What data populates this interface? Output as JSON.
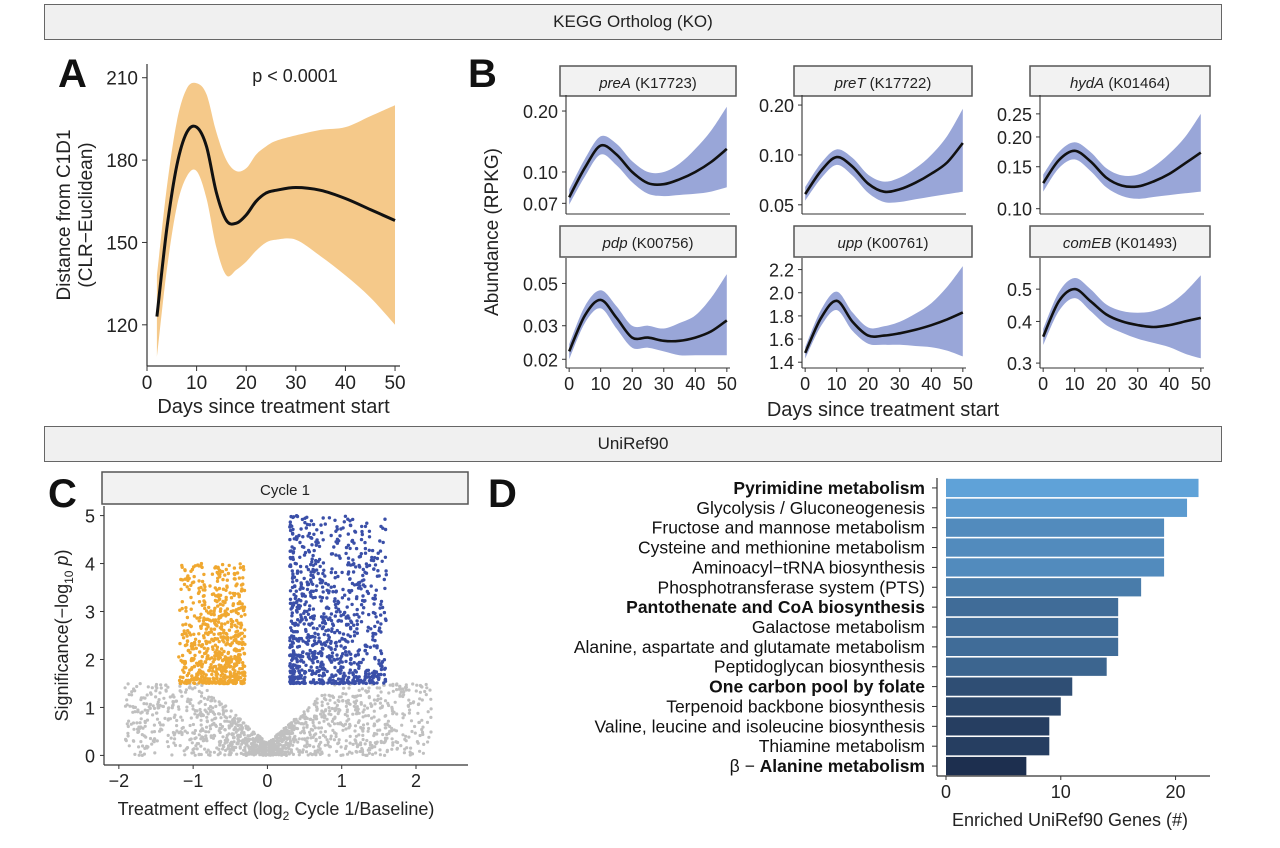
{
  "header_kegg": "KEGG Ortholog (KO)",
  "header_uniref": "UniRef90",
  "panel_labels": [
    "A",
    "B",
    "C",
    "D"
  ],
  "colors": {
    "orange_band": "#f5c98a",
    "blue_band": "#99a6d8",
    "orange_points": "#f0a830",
    "blue_points": "#3a4fa8",
    "grey_points": "#c0c0c0",
    "bar_light": "#5fa2d8",
    "bar_dark": "#1d2f4f"
  },
  "chart_data": [
    {
      "id": "A",
      "type": "line",
      "title": "",
      "annotation": "p < 0.0001",
      "xlabel": "Days since treatment start",
      "ylabel_lines": [
        "Distance from C1D1",
        "(CLR−Euclidean)"
      ],
      "xlim": [
        0,
        51
      ],
      "ylim": [
        105,
        215
      ],
      "xticks": [
        0,
        10,
        20,
        30,
        40,
        50
      ],
      "yticks": [
        120,
        150,
        180,
        210
      ],
      "x": [
        2,
        4,
        6,
        8,
        10,
        12,
        14,
        16,
        18,
        20,
        22,
        24,
        26,
        30,
        35,
        40,
        45,
        50
      ],
      "y": [
        123,
        155,
        178,
        190,
        192,
        185,
        168,
        158,
        157,
        160,
        165,
        168,
        169,
        170,
        169,
        166,
        162,
        158
      ],
      "lower": [
        108,
        140,
        163,
        174,
        176,
        166,
        148,
        138,
        140,
        143,
        147,
        150,
        151,
        151,
        145,
        138,
        130,
        120
      ],
      "upper": [
        138,
        170,
        194,
        206,
        208,
        204,
        190,
        180,
        176,
        177,
        182,
        185,
        187,
        189,
        191,
        192,
        196,
        200
      ]
    },
    {
      "id": "B",
      "type": "line",
      "facets": [
        {
          "gene": "preA",
          "ko": "(K17723)",
          "scale": "log",
          "ylim": [
            0.062,
            0.24
          ],
          "yticks": [
            0.07,
            0.1,
            0.2
          ],
          "ytick_labels": [
            "0.07",
            "0.10",
            "0.20"
          ],
          "x": [
            0,
            5,
            10,
            15,
            20,
            25,
            30,
            35,
            40,
            45,
            50
          ],
          "y": [
            0.075,
            0.105,
            0.135,
            0.122,
            0.1,
            0.088,
            0.087,
            0.092,
            0.1,
            0.112,
            0.13
          ],
          "lower": [
            0.069,
            0.095,
            0.122,
            0.108,
            0.089,
            0.078,
            0.076,
            0.077,
            0.078,
            0.08,
            0.084
          ],
          "upper": [
            0.082,
            0.116,
            0.15,
            0.138,
            0.113,
            0.1,
            0.1,
            0.11,
            0.13,
            0.16,
            0.21
          ]
        },
        {
          "gene": "preT",
          "ko": "(K17722)",
          "scale": "log",
          "ylim": [
            0.044,
            0.23
          ],
          "yticks": [
            0.05,
            0.1,
            0.2
          ],
          "ytick_labels": [
            "0.05",
            "0.10",
            "0.20"
          ],
          "x": [
            0,
            5,
            10,
            15,
            20,
            25,
            30,
            35,
            40,
            45,
            50
          ],
          "y": [
            0.058,
            0.08,
            0.097,
            0.085,
            0.067,
            0.06,
            0.062,
            0.068,
            0.077,
            0.09,
            0.118
          ],
          "lower": [
            0.053,
            0.072,
            0.087,
            0.075,
            0.059,
            0.052,
            0.052,
            0.054,
            0.056,
            0.058,
            0.06
          ],
          "upper": [
            0.064,
            0.089,
            0.108,
            0.096,
            0.076,
            0.069,
            0.073,
            0.083,
            0.1,
            0.13,
            0.19
          ]
        },
        {
          "gene": "hydA",
          "ko": "(K01464)",
          "scale": "log",
          "ylim": [
            0.095,
            0.3
          ],
          "yticks": [
            0.1,
            0.15,
            0.2,
            0.25
          ],
          "ytick_labels": [
            "0.10",
            "0.15",
            "0.20",
            "0.25"
          ],
          "x": [
            0,
            5,
            10,
            15,
            20,
            25,
            30,
            35,
            40,
            45,
            50
          ],
          "y": [
            0.128,
            0.16,
            0.175,
            0.158,
            0.135,
            0.125,
            0.124,
            0.13,
            0.14,
            0.155,
            0.172
          ],
          "lower": [
            0.118,
            0.148,
            0.161,
            0.144,
            0.123,
            0.113,
            0.11,
            0.112,
            0.114,
            0.116,
            0.118
          ],
          "upper": [
            0.139,
            0.173,
            0.19,
            0.173,
            0.148,
            0.138,
            0.139,
            0.15,
            0.17,
            0.2,
            0.25
          ]
        },
        {
          "gene": "pdp",
          "ko": "(K00756)",
          "scale": "log",
          "ylim": [
            0.018,
            0.068
          ],
          "yticks": [
            0.02,
            0.03,
            0.05
          ],
          "ytick_labels": [
            "0.02",
            "0.03",
            "0.05"
          ],
          "x": [
            0,
            5,
            10,
            15,
            20,
            25,
            30,
            35,
            40,
            45,
            50
          ],
          "y": [
            0.022,
            0.034,
            0.041,
            0.033,
            0.026,
            0.026,
            0.025,
            0.025,
            0.026,
            0.028,
            0.032
          ],
          "lower": [
            0.02,
            0.031,
            0.037,
            0.029,
            0.023,
            0.023,
            0.022,
            0.021,
            0.021,
            0.021,
            0.021
          ],
          "upper": [
            0.024,
            0.038,
            0.046,
            0.038,
            0.03,
            0.03,
            0.029,
            0.031,
            0.034,
            0.042,
            0.056
          ]
        },
        {
          "gene": "upp",
          "ko": "(K00761)",
          "scale": "linear",
          "ylim": [
            1.35,
            2.3
          ],
          "yticks": [
            1.4,
            1.6,
            1.8,
            2.0,
            2.2
          ],
          "ytick_labels": [
            "1.4",
            "1.6",
            "1.8",
            "2.0",
            "2.2"
          ],
          "x": [
            0,
            5,
            10,
            15,
            20,
            25,
            30,
            35,
            40,
            45,
            50
          ],
          "y": [
            1.48,
            1.78,
            1.93,
            1.75,
            1.63,
            1.63,
            1.65,
            1.68,
            1.72,
            1.77,
            1.83
          ],
          "lower": [
            1.43,
            1.71,
            1.85,
            1.67,
            1.56,
            1.55,
            1.55,
            1.54,
            1.53,
            1.5,
            1.45
          ],
          "upper": [
            1.53,
            1.85,
            2.01,
            1.83,
            1.7,
            1.71,
            1.75,
            1.82,
            1.91,
            2.05,
            2.23
          ]
        },
        {
          "gene": "comEB",
          "ko": "(K01493)",
          "scale": "log",
          "ylim": [
            0.29,
            0.62
          ],
          "yticks": [
            0.3,
            0.4,
            0.5
          ],
          "ytick_labels": [
            "0.3",
            "0.4",
            "0.5"
          ],
          "x": [
            0,
            5,
            10,
            15,
            20,
            25,
            30,
            35,
            40,
            45,
            50
          ],
          "y": [
            0.36,
            0.46,
            0.5,
            0.46,
            0.42,
            0.4,
            0.39,
            0.385,
            0.39,
            0.4,
            0.41
          ],
          "lower": [
            0.34,
            0.43,
            0.47,
            0.43,
            0.39,
            0.37,
            0.355,
            0.345,
            0.335,
            0.32,
            0.31
          ],
          "upper": [
            0.38,
            0.49,
            0.54,
            0.5,
            0.45,
            0.43,
            0.425,
            0.43,
            0.45,
            0.49,
            0.55
          ]
        }
      ],
      "xlim": [
        -1,
        51
      ],
      "xticks": [
        0,
        10,
        20,
        30,
        40,
        50
      ],
      "xlabel": "Days since treatment start",
      "ylabel": "Abundance (RPKG)"
    },
    {
      "id": "C",
      "type": "scatter",
      "facet_title": "Cycle 1",
      "xlabel_prefix": "Treatment effect (log",
      "xlabel_sub": "2",
      "xlabel_suffix": " Cycle 1/Baseline)",
      "ylabel_prefix": "Significance(−log",
      "ylabel_sub": "10",
      "ylabel_italic": "p",
      "ylabel_suffix": ")",
      "xlim": [
        -2.2,
        2.7
      ],
      "ylim": [
        -0.2,
        5.2
      ],
      "xticks": [
        -2,
        -1,
        0,
        1,
        2
      ],
      "yticks": [
        0,
        1,
        2,
        3,
        4,
        5
      ],
      "threshold": 1.5,
      "groups": [
        {
          "name": "down",
          "color_key": "orange_points",
          "x_range": [
            -1.2,
            -0.3
          ],
          "y_max": 4.0
        },
        {
          "name": "up",
          "color_key": "blue_points",
          "x_range": [
            0.3,
            1.6
          ],
          "y_max": 5.0
        },
        {
          "name": "ns",
          "color_key": "grey_points",
          "x_range": [
            -2.0,
            2.3
          ],
          "y_max": 1.5
        }
      ]
    },
    {
      "id": "D",
      "type": "bar",
      "orientation": "horizontal",
      "xlabel": "Enriched UniRef90 Genes (#)",
      "xlim": [
        0,
        23
      ],
      "xticks": [
        0,
        10,
        20
      ],
      "categories": [
        "Pyrimidine metabolism",
        "Glycolysis / Gluconeogenesis",
        "Fructose and mannose metabolism",
        "Cysteine and methionine metabolism",
        "Aminoacyl−tRNA biosynthesis",
        "Phosphotransferase system (PTS)",
        "Pantothenate and CoA biosynthesis",
        "Galactose metabolism",
        "Alanine, aspartate and glutamate metabolism",
        "Peptidoglycan biosynthesis",
        "One carbon pool by folate",
        "Terpenoid backbone biosynthesis",
        "Valine, leucine and isoleucine biosynthesis",
        "Thiamine metabolism",
        "Alanine metabolism"
      ],
      "label_prefix": [
        "",
        "",
        "",
        "",
        "",
        "",
        "",
        "",
        "",
        "",
        "",
        "",
        "",
        "",
        "β − "
      ],
      "bold": [
        true,
        false,
        false,
        false,
        false,
        false,
        true,
        false,
        false,
        false,
        true,
        false,
        false,
        false,
        true
      ],
      "values": [
        22,
        21,
        19,
        19,
        19,
        17,
        15,
        15,
        15,
        14,
        11,
        10,
        9,
        9,
        7
      ]
    }
  ]
}
